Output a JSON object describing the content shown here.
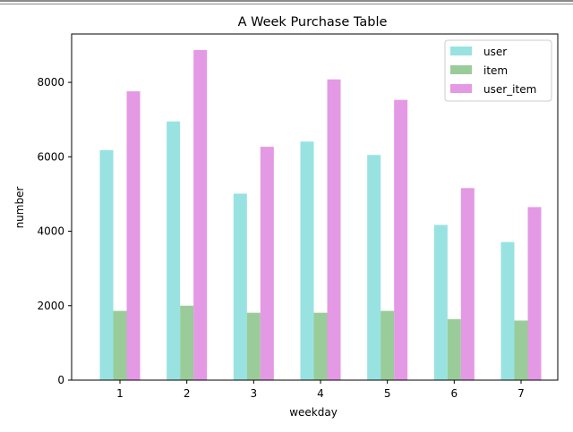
{
  "chart_data": {
    "type": "bar",
    "title": "A Week Purchase Table",
    "xlabel": "weekday",
    "ylabel": "number",
    "categories": [
      "1",
      "2",
      "3",
      "4",
      "5",
      "6",
      "7"
    ],
    "series": [
      {
        "name": "user",
        "color": "#7fdbdb",
        "values": [
          6180,
          6950,
          5010,
          6410,
          6050,
          4170,
          3710
        ]
      },
      {
        "name": "item",
        "color": "#7fbf7f",
        "values": [
          1860,
          2000,
          1810,
          1810,
          1860,
          1640,
          1600
        ]
      },
      {
        "name": "user_item",
        "color": "#dd7fdd",
        "values": [
          7760,
          8870,
          6270,
          8080,
          7530,
          5160,
          4650
        ]
      }
    ],
    "ylim": [
      0,
      9300
    ],
    "yticks": [
      0,
      2000,
      4000,
      6000,
      8000
    ],
    "legend_position": "top-right",
    "grid": false
  }
}
